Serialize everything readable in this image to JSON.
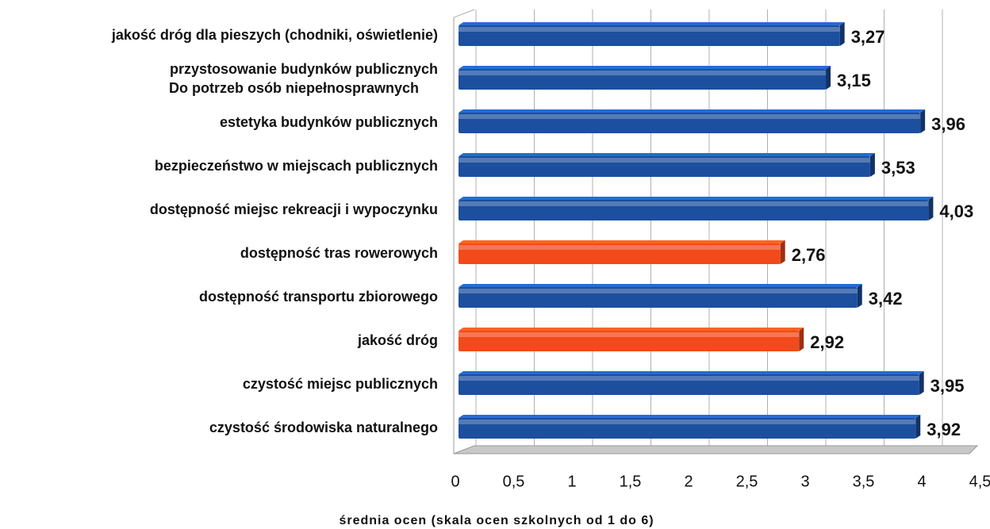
{
  "chart_data": {
    "type": "bar",
    "orientation": "horizontal",
    "x_label": "średnia ocen (skala ocen szkolnych od 1 do 6)",
    "categories": [
      "jakość dróg dla pieszych (chodniki, oświetlenie)",
      "przystosowanie budynków publicznych\nDo potrzeb osób niepełnosprawnych",
      "estetyka budynków publicznych",
      "bezpieczeństwo w miejscach publicznych",
      "dostępność miejsc rekreacji i wypoczynku",
      "dostępność tras rowerowych",
      "dostępność transportu zbiorowego",
      "jakość dróg",
      "czystość miejsc publicznych",
      "czystość środowiska naturalnego"
    ],
    "values": [
      3.27,
      3.15,
      3.96,
      3.53,
      4.03,
      2.76,
      3.42,
      2.92,
      3.95,
      3.92
    ],
    "value_labels": [
      "3,27",
      "3,15",
      "3,96",
      "3,53",
      "4,03",
      "2,76",
      "3,42",
      "2,92",
      "3,95",
      "3,92"
    ],
    "colors": [
      "#1c4f9e",
      "#1c4f9e",
      "#1c4f9e",
      "#1c4f9e",
      "#1c4f9e",
      "#f24a1a",
      "#1c4f9e",
      "#f24a1a",
      "#1c4f9e",
      "#1c4f9e"
    ],
    "xlim": [
      0,
      4.5
    ],
    "xticks": [
      0,
      {
        "value": 0.5,
        "label": "0,5"
      },
      1,
      {
        "value": 1.5,
        "label": "1,5"
      },
      2,
      {
        "value": 2.5,
        "label": "2,5"
      },
      3,
      {
        "value": 3.5,
        "label": "3,5"
      },
      4,
      {
        "value": 4.5,
        "label": "4,5"
      }
    ],
    "grid": true
  }
}
